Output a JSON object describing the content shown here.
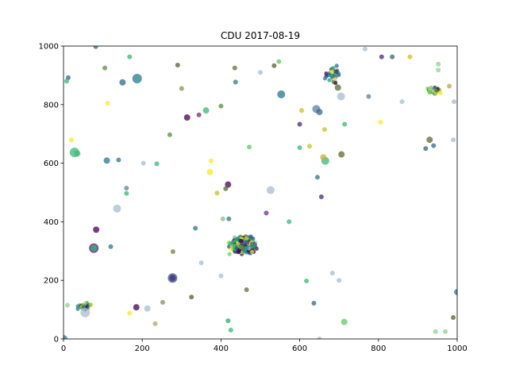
{
  "chart_data": {
    "type": "scatter",
    "title": "CDU    2017-08-19",
    "xlabel": "",
    "ylabel": "",
    "xlim": [
      0,
      1000
    ],
    "ylim": [
      0,
      1000
    ],
    "xticks": [
      "0",
      "200",
      "400",
      "600",
      "800",
      "1000"
    ],
    "yticks": [
      "0",
      "200",
      "400",
      "600",
      "800",
      "1000"
    ],
    "grid": false,
    "colormap": "viridis",
    "clusters": [
      {
        "x": 455,
        "y": 320,
        "x_spread": 40,
        "y_spread": 35,
        "count": 320,
        "size": 2.6
      },
      {
        "x": 940,
        "y": 848,
        "x_spread": 22,
        "y_spread": 14,
        "count": 60,
        "size": 2.6
      },
      {
        "x": 55,
        "y": 110,
        "x_spread": 22,
        "y_spread": 14,
        "count": 45,
        "size": 2.6
      },
      {
        "x": 685,
        "y": 905,
        "x_spread": 28,
        "y_spread": 40,
        "count": 35,
        "size": 2.6
      }
    ],
    "points": [
      {
        "x": 0,
        "y": 0,
        "r": 5,
        "c": "#2a788e"
      },
      {
        "x": 28,
        "y": 637,
        "r": 6,
        "c": "#35b779"
      },
      {
        "x": 35,
        "y": 633,
        "r": 4,
        "c": "#3fbc73"
      },
      {
        "x": 77,
        "y": 310,
        "r": 6,
        "c": "#481f70"
      },
      {
        "x": 77,
        "y": 310,
        "r": 4,
        "c": "#35b779"
      },
      {
        "x": 83,
        "y": 373,
        "r": 4,
        "c": "#440154"
      },
      {
        "x": 55,
        "y": 90,
        "r": 6,
        "c": "#a8bcd0"
      },
      {
        "x": 110,
        "y": 609,
        "r": 4,
        "c": "#2a788e"
      },
      {
        "x": 136,
        "y": 445,
        "r": 5,
        "c": "#a8bcd0"
      },
      {
        "x": 150,
        "y": 876,
        "r": 4,
        "c": "#31688e"
      },
      {
        "x": 187,
        "y": 889,
        "r": 6,
        "c": "#2a788e"
      },
      {
        "x": 185,
        "y": 108,
        "r": 4,
        "c": "#440154"
      },
      {
        "x": 213,
        "y": 104,
        "r": 4,
        "c": "#a8bcd0"
      },
      {
        "x": 277,
        "y": 208,
        "r": 6,
        "c": "#39568c"
      },
      {
        "x": 277,
        "y": 208,
        "r": 4,
        "c": "#482878"
      },
      {
        "x": 314,
        "y": 756,
        "r": 4,
        "c": "#440154"
      },
      {
        "x": 344,
        "y": 765,
        "r": 3,
        "c": "#6a2c8e"
      },
      {
        "x": 362,
        "y": 780,
        "r": 4,
        "c": "#35b779"
      },
      {
        "x": 335,
        "y": 378,
        "r": 3,
        "c": "#2a788e"
      },
      {
        "x": 372,
        "y": 570,
        "r": 4,
        "c": "#fde725"
      },
      {
        "x": 390,
        "y": 498,
        "r": 3,
        "c": "#c9c21b"
      },
      {
        "x": 418,
        "y": 527,
        "r": 4,
        "c": "#440154"
      },
      {
        "x": 412,
        "y": 513,
        "r": 3,
        "c": "#5a6b2f"
      },
      {
        "x": 465,
        "y": 168,
        "r": 3,
        "c": "#6b6b3a"
      },
      {
        "x": 418,
        "y": 62,
        "r": 3,
        "c": "#2ca56a"
      },
      {
        "x": 425,
        "y": 30,
        "r": 3,
        "c": "#35b779"
      },
      {
        "x": 405,
        "y": 410,
        "r": 3,
        "c": "#8fb98a"
      },
      {
        "x": 420,
        "y": 410,
        "r": 3,
        "c": "#2a788e"
      },
      {
        "x": 526,
        "y": 508,
        "r": 5,
        "c": "#a8bcd0"
      },
      {
        "x": 535,
        "y": 933,
        "r": 3,
        "c": "#5a5f2a"
      },
      {
        "x": 553,
        "y": 835,
        "r": 5,
        "c": "#2a788e"
      },
      {
        "x": 573,
        "y": 400,
        "r": 3,
        "c": "#35b779"
      },
      {
        "x": 642,
        "y": 785,
        "r": 5,
        "c": "#5c7fa0"
      },
      {
        "x": 650,
        "y": 775,
        "r": 4,
        "c": "#31688e"
      },
      {
        "x": 645,
        "y": 552,
        "r": 3,
        "c": "#2a788e"
      },
      {
        "x": 665,
        "y": 608,
        "r": 5,
        "c": "#35b779"
      },
      {
        "x": 660,
        "y": 620,
        "r": 4,
        "c": "#c2b23a"
      },
      {
        "x": 697,
        "y": 858,
        "r": 4,
        "c": "#5a6b2f"
      },
      {
        "x": 705,
        "y": 828,
        "r": 5,
        "c": "#a8bcd0"
      },
      {
        "x": 706,
        "y": 630,
        "r": 4,
        "c": "#5a6b2f"
      },
      {
        "x": 625,
        "y": 658,
        "r": 3,
        "c": "#c9c21b"
      },
      {
        "x": 636,
        "y": 122,
        "r": 3,
        "c": "#31688e"
      },
      {
        "x": 713,
        "y": 58,
        "r": 4,
        "c": "#5ec962"
      },
      {
        "x": 617,
        "y": 198,
        "r": 3,
        "c": "#35b779"
      },
      {
        "x": 775,
        "y": 828,
        "r": 3,
        "c": "#5c7fa0"
      },
      {
        "x": 766,
        "y": 990,
        "r": 3,
        "c": "#a8bcd0"
      },
      {
        "x": 808,
        "y": 963,
        "r": 3,
        "c": "#482878"
      },
      {
        "x": 860,
        "y": 810,
        "r": 3,
        "c": "#a8bcd0"
      },
      {
        "x": 930,
        "y": 680,
        "r": 4,
        "c": "#5a6b2f"
      },
      {
        "x": 940,
        "y": 660,
        "r": 3,
        "c": "#31688e"
      },
      {
        "x": 1000,
        "y": 160,
        "r": 4,
        "c": "#2a788e"
      },
      {
        "x": 990,
        "y": 73,
        "r": 3,
        "c": "#5a5f2a"
      },
      {
        "x": 970,
        "y": 25,
        "r": 3,
        "c": "#8fd18a"
      },
      {
        "x": 120,
        "y": 315,
        "r": 3,
        "c": "#2a788e"
      },
      {
        "x": 160,
        "y": 497,
        "r": 3,
        "c": "#35b779"
      },
      {
        "x": 168,
        "y": 963,
        "r": 3,
        "c": "#35b779"
      },
      {
        "x": 270,
        "y": 697,
        "r": 3,
        "c": "#5a8f3a"
      },
      {
        "x": 237,
        "y": 598,
        "r": 3,
        "c": "#35b779"
      },
      {
        "x": 140,
        "y": 611,
        "r": 3,
        "c": "#2a788e"
      },
      {
        "x": 252,
        "y": 125,
        "r": 3,
        "c": "#8f8f5a"
      },
      {
        "x": 233,
        "y": 52,
        "r": 3,
        "c": "#c2a060"
      },
      {
        "x": 278,
        "y": 298,
        "r": 3,
        "c": "#7f7f3f"
      },
      {
        "x": 325,
        "y": 143,
        "r": 3,
        "c": "#5a5f2a"
      },
      {
        "x": 105,
        "y": 925,
        "r": 3,
        "c": "#5a8f3a"
      },
      {
        "x": 82,
        "y": 998,
        "r": 3,
        "c": "#31688e"
      },
      {
        "x": 12,
        "y": 892,
        "r": 3,
        "c": "#31688e"
      },
      {
        "x": 8,
        "y": 880,
        "r": 3,
        "c": "#35b779"
      },
      {
        "x": 435,
        "y": 925,
        "r": 3,
        "c": "#6b6b3a"
      },
      {
        "x": 437,
        "y": 877,
        "r": 3,
        "c": "#2a788e"
      },
      {
        "x": 500,
        "y": 910,
        "r": 3,
        "c": "#a8bcd0"
      },
      {
        "x": 547,
        "y": 947,
        "r": 3,
        "c": "#5ec962"
      },
      {
        "x": 605,
        "y": 780,
        "r": 3,
        "c": "#c9c21b"
      },
      {
        "x": 600,
        "y": 733,
        "r": 3,
        "c": "#482878"
      },
      {
        "x": 663,
        "y": 715,
        "r": 3,
        "c": "#c9c21b"
      },
      {
        "x": 714,
        "y": 733,
        "r": 3,
        "c": "#35b779"
      },
      {
        "x": 835,
        "y": 963,
        "r": 3,
        "c": "#3b5f7a"
      },
      {
        "x": 880,
        "y": 963,
        "r": 3,
        "c": "#c9c21b"
      },
      {
        "x": 952,
        "y": 918,
        "r": 3,
        "c": "#8fd18a"
      },
      {
        "x": 992,
        "y": 810,
        "r": 3,
        "c": "#a8bcd0"
      },
      {
        "x": 980,
        "y": 863,
        "r": 3,
        "c": "#c9a04a"
      },
      {
        "x": 683,
        "y": 225,
        "r": 3,
        "c": "#a8bcd0"
      },
      {
        "x": 700,
        "y": 200,
        "r": 3,
        "c": "#a8bcd0"
      },
      {
        "x": 650,
        "y": 0,
        "r": 3,
        "c": "#a8bcd0"
      },
      {
        "x": 515,
        "y": 430,
        "r": 3,
        "c": "#6a2c8e"
      },
      {
        "x": 600,
        "y": 653,
        "r": 3,
        "c": "#35b779"
      },
      {
        "x": 805,
        "y": 740,
        "r": 3,
        "c": "#fde725"
      },
      {
        "x": 350,
        "y": 260,
        "r": 3,
        "c": "#a8bcd0"
      },
      {
        "x": 400,
        "y": 215,
        "r": 3,
        "c": "#a8bcd0"
      },
      {
        "x": 112,
        "y": 805,
        "r": 3,
        "c": "#fde725"
      },
      {
        "x": 203,
        "y": 600,
        "r": 3,
        "c": "#a8bcd0"
      },
      {
        "x": 160,
        "y": 515,
        "r": 3,
        "c": "#5c7fa0"
      },
      {
        "x": 290,
        "y": 935,
        "r": 3,
        "c": "#5a5f2a"
      },
      {
        "x": 300,
        "y": 855,
        "r": 3,
        "c": "#8f8f5a"
      },
      {
        "x": 400,
        "y": 795,
        "r": 3,
        "c": "#5a8f3a"
      },
      {
        "x": 472,
        "y": 655,
        "r": 3,
        "c": "#5ec962"
      },
      {
        "x": 375,
        "y": 608,
        "r": 3,
        "c": "#fde725"
      },
      {
        "x": 20,
        "y": 680,
        "r": 3,
        "c": "#fde725"
      },
      {
        "x": 10,
        "y": 115,
        "r": 3,
        "c": "#8fd18a"
      },
      {
        "x": 168,
        "y": 88,
        "r": 3,
        "c": "#fde725"
      },
      {
        "x": 655,
        "y": 485,
        "r": 3,
        "c": "#482878"
      },
      {
        "x": 945,
        "y": 25,
        "r": 3,
        "c": "#8fd18a"
      },
      {
        "x": 952,
        "y": 938,
        "r": 3,
        "c": "#8fd18a"
      },
      {
        "x": 920,
        "y": 650,
        "r": 3,
        "c": "#31688e"
      },
      {
        "x": 990,
        "y": 680,
        "r": 3,
        "c": "#a8bcd0"
      }
    ]
  }
}
